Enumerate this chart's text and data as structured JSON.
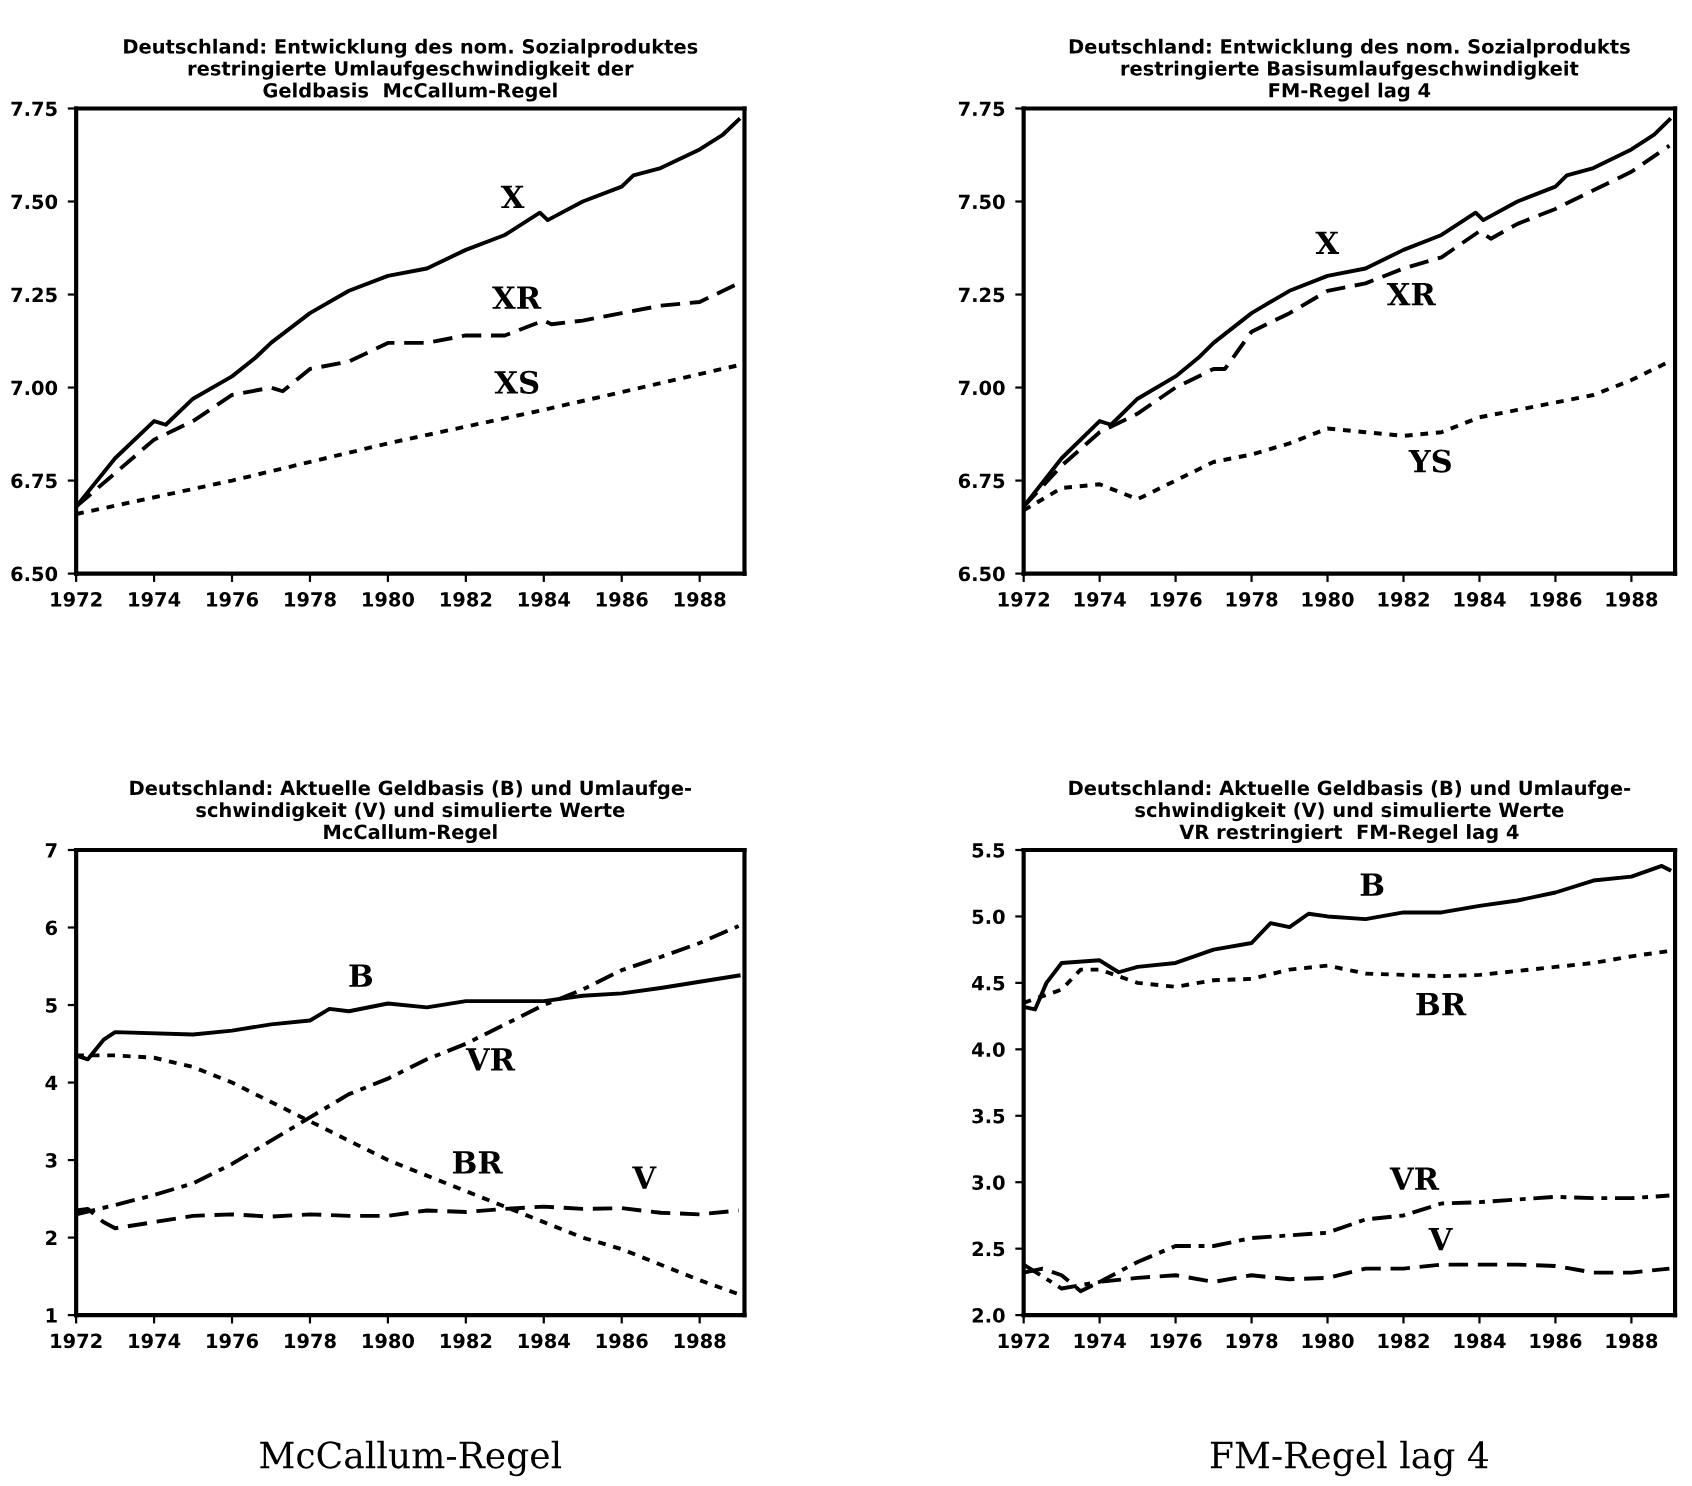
{
  "chart_data": [
    {
      "type": "line",
      "title": "Deutschland: Entwicklung des nom. Sozialproduktes\nrestringierte Umlaufgeschwindigkeit der\nGeldbasis  McCallum-Regel",
      "xlim": [
        1972,
        1989.15
      ],
      "xticks": [
        1972,
        1974,
        1976,
        1978,
        1980,
        1982,
        1984,
        1986,
        1988
      ],
      "ylim": [
        6.5,
        7.75
      ],
      "yticks": [
        {
          "value": 6.5,
          "label": "6.50"
        },
        {
          "value": 6.75,
          "label": "6.75"
        },
        {
          "value": 7.0,
          "label": "7.00"
        },
        {
          "value": 7.25,
          "label": "7.25"
        },
        {
          "value": 7.5,
          "label": "7.50"
        },
        {
          "value": 7.75,
          "label": "7.75"
        }
      ],
      "grid": false,
      "legend": false,
      "series": [
        {
          "name": "X",
          "color": "#000000",
          "line_style": "solid",
          "x": [
            1972,
            1973,
            1974,
            1974.3,
            1975,
            1976,
            1976.6,
            1977,
            1978,
            1979,
            1980,
            1981,
            1982,
            1983,
            1983.9,
            1984.1,
            1985,
            1986,
            1986.3,
            1987,
            1988,
            1988.6,
            1989
          ],
          "values": [
            6.68,
            6.81,
            6.91,
            6.9,
            6.97,
            7.03,
            7.08,
            7.12,
            7.2,
            7.26,
            7.3,
            7.32,
            7.37,
            7.41,
            7.47,
            7.45,
            7.5,
            7.54,
            7.57,
            7.59,
            7.64,
            7.68,
            7.72
          ]
        },
        {
          "name": "XR",
          "color": "#000000",
          "line_style": "dashed",
          "x": [
            1972,
            1973,
            1974,
            1975,
            1976,
            1977,
            1977.3,
            1978,
            1979,
            1980,
            1981,
            1982,
            1983,
            1984,
            1984.2,
            1985,
            1986,
            1987,
            1988,
            1989
          ],
          "values": [
            6.68,
            6.77,
            6.86,
            6.91,
            6.98,
            7.0,
            6.99,
            7.05,
            7.07,
            7.12,
            7.12,
            7.14,
            7.14,
            7.18,
            7.17,
            7.18,
            7.2,
            7.22,
            7.23,
            7.28
          ]
        },
        {
          "name": "XS",
          "color": "#000000",
          "line_style": "dotted",
          "x": [
            1972,
            1976,
            1980,
            1984,
            1989
          ],
          "values": [
            6.66,
            6.75,
            6.85,
            6.94,
            7.06
          ]
        }
      ]
    },
    {
      "type": "line",
      "title": "Deutschland: Entwicklung des nom. Sozialprodukts\nrestringierte Basisumlaufgeschwindigkeit\nFM-Regel lag 4",
      "xlim": [
        1972,
        1989.15
      ],
      "xticks": [
        1972,
        1974,
        1976,
        1978,
        1980,
        1982,
        1984,
        1986,
        1988
      ],
      "ylim": [
        6.5,
        7.75
      ],
      "yticks": [
        {
          "value": 6.5,
          "label": "6.50"
        },
        {
          "value": 6.75,
          "label": "6.75"
        },
        {
          "value": 7.0,
          "label": "7.00"
        },
        {
          "value": 7.25,
          "label": "7.25"
        },
        {
          "value": 7.5,
          "label": "7.50"
        },
        {
          "value": 7.75,
          "label": "7.75"
        }
      ],
      "grid": false,
      "legend": false,
      "series": [
        {
          "name": "X",
          "color": "#000000",
          "line_style": "solid",
          "x": [
            1972,
            1973,
            1974,
            1974.3,
            1975,
            1976,
            1976.6,
            1977,
            1978,
            1979,
            1980,
            1981,
            1982,
            1983,
            1983.9,
            1984.1,
            1985,
            1986,
            1986.3,
            1987,
            1988,
            1988.6,
            1989
          ],
          "values": [
            6.68,
            6.81,
            6.91,
            6.9,
            6.97,
            7.03,
            7.08,
            7.12,
            7.2,
            7.26,
            7.3,
            7.32,
            7.37,
            7.41,
            7.47,
            7.45,
            7.5,
            7.54,
            7.57,
            7.59,
            7.64,
            7.68,
            7.72
          ]
        },
        {
          "name": "XR",
          "color": "#000000",
          "line_style": "dashed",
          "x": [
            1972,
            1973,
            1974,
            1975,
            1976,
            1977,
            1977.3,
            1978,
            1979,
            1980,
            1981,
            1982,
            1983,
            1984,
            1984.3,
            1985,
            1986,
            1987,
            1988,
            1989
          ],
          "values": [
            6.68,
            6.79,
            6.88,
            6.93,
            7.0,
            7.05,
            7.05,
            7.15,
            7.2,
            7.26,
            7.28,
            7.32,
            7.35,
            7.42,
            7.4,
            7.44,
            7.48,
            7.53,
            7.58,
            7.65
          ]
        },
        {
          "name": "YS",
          "color": "#000000",
          "line_style": "dotted",
          "x": [
            1972,
            1973,
            1974,
            1975,
            1976,
            1977,
            1978,
            1979,
            1980,
            1981,
            1982,
            1983,
            1984,
            1985,
            1986,
            1987,
            1988,
            1989
          ],
          "values": [
            6.67,
            6.73,
            6.74,
            6.7,
            6.75,
            6.8,
            6.82,
            6.85,
            6.89,
            6.88,
            6.87,
            6.88,
            6.92,
            6.94,
            6.96,
            6.98,
            7.02,
            7.07
          ]
        }
      ]
    },
    {
      "type": "line",
      "title": "Deutschland: Aktuelle Geldbasis (B) und Umlaufge-\nschwindigkeit (V) und simulierte Werte\nMcCallum-Regel",
      "xlim": [
        1972,
        1989.15
      ],
      "xticks": [
        1972,
        1974,
        1976,
        1978,
        1980,
        1982,
        1984,
        1986,
        1988
      ],
      "ylim": [
        1,
        7
      ],
      "yticks": [
        1,
        2,
        3,
        4,
        5,
        6,
        7
      ],
      "grid": false,
      "legend": false,
      "series": [
        {
          "name": "B",
          "color": "#000000",
          "line_style": "solid",
          "x": [
            1972,
            1972.3,
            1972.7,
            1973,
            1975,
            1976,
            1977,
            1978,
            1978.5,
            1979,
            1980,
            1981,
            1982,
            1983,
            1984,
            1985,
            1986,
            1987,
            1988,
            1989
          ],
          "values": [
            4.35,
            4.3,
            4.55,
            4.65,
            4.62,
            4.67,
            4.75,
            4.8,
            4.95,
            4.92,
            5.02,
            4.97,
            5.05,
            5.05,
            5.05,
            5.12,
            5.15,
            5.22,
            5.3,
            5.38
          ]
        },
        {
          "name": "VR",
          "color": "#000000",
          "line_style": "dashdot",
          "x": [
            1972,
            1973,
            1974,
            1975,
            1976,
            1977,
            1978,
            1979,
            1980,
            1981,
            1982,
            1983,
            1984,
            1985,
            1986,
            1987,
            1988,
            1989
          ],
          "values": [
            2.3,
            2.42,
            2.55,
            2.7,
            2.95,
            3.25,
            3.55,
            3.85,
            4.05,
            4.3,
            4.5,
            4.75,
            5.0,
            5.2,
            5.45,
            5.62,
            5.8,
            6.02
          ]
        },
        {
          "name": "BR",
          "color": "#000000",
          "line_style": "dotted",
          "x": [
            1972,
            1973,
            1974,
            1975,
            1976,
            1977,
            1978,
            1979,
            1980,
            1981,
            1982,
            1983,
            1984,
            1985,
            1986,
            1987,
            1988,
            1989
          ],
          "values": [
            4.35,
            4.35,
            4.32,
            4.2,
            4.0,
            3.75,
            3.5,
            3.25,
            3.0,
            2.8,
            2.6,
            2.4,
            2.2,
            2.0,
            1.85,
            1.65,
            1.45,
            1.27
          ]
        },
        {
          "name": "V",
          "color": "#000000",
          "line_style": "dashed",
          "x": [
            1972,
            1972.3,
            1972.7,
            1973,
            1974,
            1975,
            1976,
            1977,
            1978,
            1979,
            1980,
            1981,
            1982,
            1983,
            1984,
            1985,
            1986,
            1987,
            1988,
            1989
          ],
          "values": [
            2.35,
            2.37,
            2.2,
            2.12,
            2.2,
            2.28,
            2.3,
            2.27,
            2.3,
            2.28,
            2.28,
            2.35,
            2.33,
            2.37,
            2.4,
            2.37,
            2.38,
            2.32,
            2.3,
            2.35
          ]
        }
      ],
      "annotations": [
        "McCallum-Regel"
      ]
    },
    {
      "type": "line",
      "title": "Deutschland: Aktuelle Geldbasis (B) und Umlaufge-\nschwindigkeit (V) und simulierte Werte\nVR restringiert  FM-Regel lag 4",
      "xlim": [
        1972,
        1989.15
      ],
      "xticks": [
        1972,
        1974,
        1976,
        1978,
        1980,
        1982,
        1984,
        1986,
        1988
      ],
      "ylim": [
        2.0,
        5.5
      ],
      "yticks": [
        {
          "value": 2.0,
          "label": "2.0"
        },
        {
          "value": 2.5,
          "label": "2.5"
        },
        {
          "value": 3.0,
          "label": "3.0"
        },
        {
          "value": 3.5,
          "label": "3.5"
        },
        {
          "value": 4.0,
          "label": "4.0"
        },
        {
          "value": 4.5,
          "label": "4.5"
        },
        {
          "value": 5.0,
          "label": "5.0"
        },
        {
          "value": 5.5,
          "label": "5.5"
        }
      ],
      "grid": false,
      "legend": false,
      "series": [
        {
          "name": "B",
          "color": "#000000",
          "line_style": "solid",
          "x": [
            1972,
            1972.3,
            1972.6,
            1973,
            1974,
            1974.5,
            1975,
            1976,
            1977,
            1978,
            1978.5,
            1979,
            1979.5,
            1980,
            1981,
            1982,
            1983,
            1984,
            1985,
            1986,
            1987,
            1988,
            1988.8,
            1989
          ],
          "values": [
            4.32,
            4.3,
            4.5,
            4.65,
            4.67,
            4.58,
            4.62,
            4.65,
            4.75,
            4.8,
            4.95,
            4.92,
            5.02,
            5.0,
            4.98,
            5.03,
            5.03,
            5.08,
            5.12,
            5.18,
            5.27,
            5.3,
            5.38,
            5.35
          ]
        },
        {
          "name": "BR",
          "color": "#000000",
          "line_style": "dotted",
          "x": [
            1972,
            1973,
            1973.5,
            1974,
            1975,
            1976,
            1977,
            1978,
            1979,
            1980,
            1981,
            1982,
            1983,
            1984,
            1985,
            1986,
            1987,
            1988,
            1989
          ],
          "values": [
            4.35,
            4.45,
            4.6,
            4.6,
            4.5,
            4.47,
            4.52,
            4.53,
            4.6,
            4.63,
            4.57,
            4.56,
            4.55,
            4.56,
            4.59,
            4.62,
            4.65,
            4.7,
            4.74
          ]
        },
        {
          "name": "VR",
          "color": "#000000",
          "line_style": "dashdot",
          "x": [
            1972,
            1973,
            1974,
            1975,
            1976,
            1977,
            1978,
            1979,
            1980,
            1981,
            1982,
            1983,
            1984,
            1985,
            1986,
            1987,
            1988,
            1989
          ],
          "values": [
            2.38,
            2.2,
            2.25,
            2.4,
            2.52,
            2.52,
            2.58,
            2.6,
            2.62,
            2.72,
            2.75,
            2.84,
            2.85,
            2.87,
            2.89,
            2.88,
            2.88,
            2.9
          ]
        },
        {
          "name": "V",
          "color": "#000000",
          "line_style": "dashed",
          "x": [
            1972,
            1972.5,
            1973,
            1973.5,
            1974,
            1975,
            1976,
            1977,
            1978,
            1979,
            1980,
            1981,
            1982,
            1983,
            1984,
            1985,
            1986,
            1987,
            1988,
            1989
          ],
          "values": [
            2.32,
            2.35,
            2.3,
            2.18,
            2.25,
            2.28,
            2.3,
            2.25,
            2.3,
            2.27,
            2.28,
            2.35,
            2.35,
            2.38,
            2.38,
            2.38,
            2.37,
            2.32,
            2.32,
            2.35
          ]
        }
      ],
      "annotations": [
        "FM-Regel lag 4"
      ]
    }
  ]
}
